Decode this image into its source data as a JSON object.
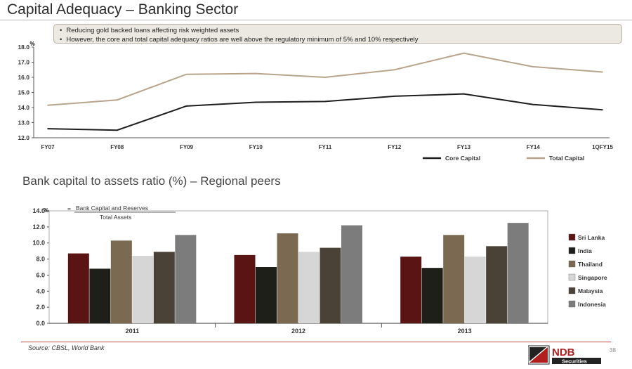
{
  "page": {
    "title": "Capital Adequacy – Banking Sector",
    "section_title": "Bank capital to assets ratio (%) – Regional peers",
    "source": "Source: CBSL, World Bank",
    "page_number": "38",
    "logo": {
      "main_text": "NDB",
      "sub_text": "Securities"
    },
    "bullets": [
      "Reducing gold backed loans affecting risk weighted assets",
      "However, the core and total capital adequacy ratios are well above the regulatory minimum of 5% and 10% respectively"
    ]
  },
  "chart_data": [
    {
      "type": "line",
      "unit_label": "%",
      "categories": [
        "FY07",
        "FY08",
        "FY09",
        "FY10",
        "FY11",
        "FY12",
        "FY13",
        "FY14",
        "1QFY15"
      ],
      "ylim": [
        12.0,
        18.0
      ],
      "yticks": [
        "12.0",
        "13.0",
        "14.0",
        "15.0",
        "16.0",
        "17.0",
        "18.0"
      ],
      "legend_position": "bottom-right",
      "series": [
        {
          "name": "Core Capital",
          "color": "#1e1e1e",
          "values": [
            12.6,
            12.5,
            14.1,
            14.35,
            14.4,
            14.75,
            14.9,
            14.2,
            13.85
          ]
        },
        {
          "name": "Total Capital",
          "color": "#b8a48a",
          "values": [
            14.15,
            14.5,
            16.2,
            16.25,
            16.0,
            16.5,
            17.6,
            16.7,
            16.35
          ]
        }
      ]
    },
    {
      "type": "bar",
      "unit_label": "%",
      "formula": {
        "numerator": "Bank Capital and Reserves",
        "denominator": "Total Assets"
      },
      "categories": [
        "2011",
        "2012",
        "2013"
      ],
      "ylim": [
        0,
        14
      ],
      "yticks": [
        "0.0",
        "2.0",
        "4.0",
        "6.0",
        "8.0",
        "10.0",
        "12.0",
        "14.0"
      ],
      "legend_position": "right",
      "series": [
        {
          "name": "Sri Lanka",
          "color": "#5a1414",
          "values": [
            8.7,
            8.5,
            8.3
          ]
        },
        {
          "name": "India",
          "color": "#1f1f1a",
          "values": [
            6.8,
            7.0,
            6.9
          ]
        },
        {
          "name": "Thailand",
          "color": "#7a6a52",
          "values": [
            10.3,
            11.2,
            11.0
          ]
        },
        {
          "name": "Singapore",
          "color": "#d6d6d6",
          "values": [
            8.4,
            8.9,
            8.3
          ]
        },
        {
          "name": "Malaysia",
          "color": "#4a4236",
          "values": [
            8.9,
            9.4,
            9.6
          ]
        },
        {
          "name": "Indonesia",
          "color": "#7c7c7c",
          "values": [
            11.0,
            12.2,
            12.5
          ]
        }
      ]
    }
  ]
}
